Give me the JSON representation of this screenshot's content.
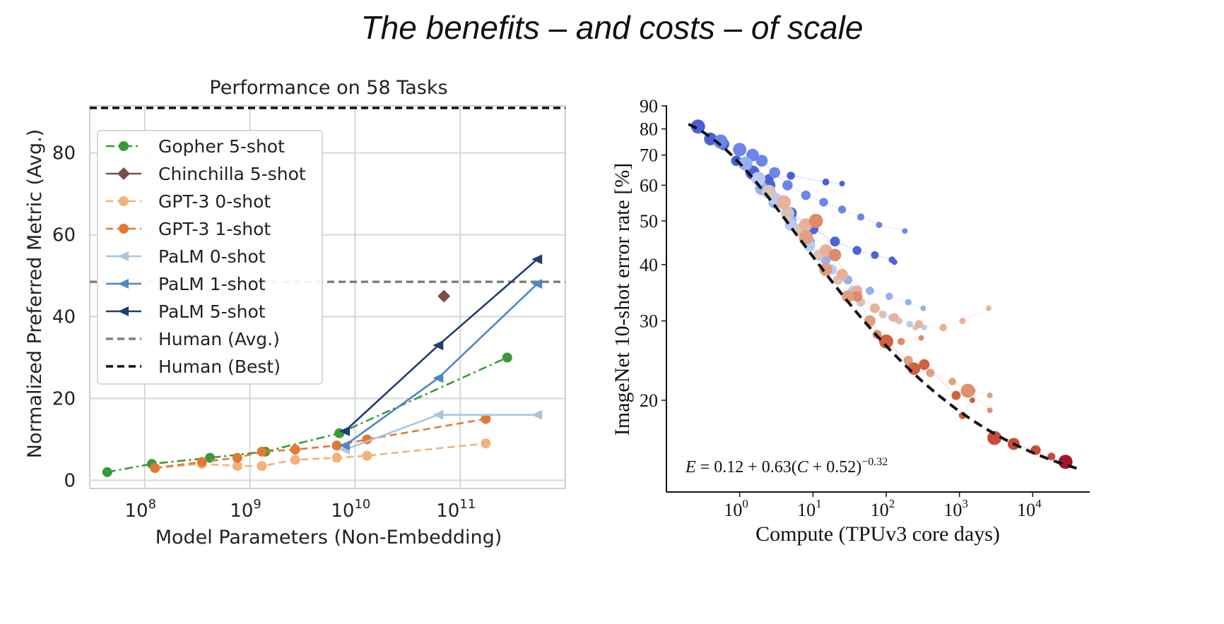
{
  "slide": {
    "title": "The benefits – and costs – of scale"
  },
  "chart_data": [
    {
      "type": "line",
      "title": "Performance on 58 Tasks",
      "xlabel": "Model Parameters (Non-Embedding)",
      "ylabel": "Normalized Preferred Metric (Avg.)",
      "x_scale": "log",
      "xlim": [
        30000000.0,
        1000000000000.0
      ],
      "ylim": [
        -2,
        91.5
      ],
      "x_ticks": [
        {
          "value": 100000000.0,
          "base": "10",
          "exp": "8"
        },
        {
          "value": 1000000000.0,
          "base": "10",
          "exp": "9"
        },
        {
          "value": 10000000000.0,
          "base": "10",
          "exp": "10"
        },
        {
          "value": 100000000000.0,
          "base": "10",
          "exp": "11"
        }
      ],
      "y_ticks": [
        0,
        20,
        40,
        60,
        80
      ],
      "grid": true,
      "legend_position": "upper-left",
      "series": [
        {
          "name": "Gopher 5-shot",
          "color": "#3a9a3a",
          "style": "dashdot",
          "marker": "circle",
          "x": [
            44000000.0,
            117000000.0,
            417000000.0,
            1400000000.0,
            7100000000.0,
            280000000000.0
          ],
          "y": [
            2,
            4,
            5.5,
            7,
            11.5,
            30
          ]
        },
        {
          "name": "Chinchilla 5-shot",
          "color": "#7b4f45",
          "style": "solid",
          "marker": "diamond",
          "x": [
            70000000000.0
          ],
          "y": [
            45
          ]
        },
        {
          "name": "GPT-3 0-shot",
          "color": "#f2b27a",
          "style": "dashed",
          "marker": "circle",
          "x": [
            125000000.0,
            350000000.0,
            760000000.0,
            1300000000.0,
            2700000000.0,
            6700000000.0,
            13000000000.0,
            175000000000.0
          ],
          "y": [
            3,
            4,
            3.5,
            3.5,
            5,
            5.5,
            6,
            9
          ]
        },
        {
          "name": "GPT-3 1-shot",
          "color": "#e07a35",
          "style": "dashed",
          "marker": "circle",
          "x": [
            125000000.0,
            350000000.0,
            760000000.0,
            1300000000.0,
            2700000000.0,
            6700000000.0,
            13000000000.0,
            175000000000.0
          ],
          "y": [
            3,
            4.5,
            5.5,
            7,
            7.5,
            8.5,
            10,
            15
          ]
        },
        {
          "name": "PaLM 0-shot",
          "color": "#a9c6e0",
          "style": "solid",
          "marker": "triangle-left",
          "x": [
            8000000000.0,
            62000000000.0,
            540000000000.0
          ],
          "y": [
            7.5,
            16,
            16
          ]
        },
        {
          "name": "PaLM 1-shot",
          "color": "#4f87c2",
          "style": "solid",
          "marker": "triangle-left",
          "x": [
            8000000000.0,
            62000000000.0,
            540000000000.0
          ],
          "y": [
            8.5,
            25,
            48
          ]
        },
        {
          "name": "PaLM 5-shot",
          "color": "#1f3f6e",
          "style": "solid",
          "marker": "triangle-left",
          "x": [
            8000000000.0,
            62000000000.0,
            540000000000.0
          ],
          "y": [
            12,
            33,
            54
          ]
        },
        {
          "name": "Human (Avg.)",
          "color": "#808080",
          "style": "dashed",
          "marker": "none",
          "hline": 48.5
        },
        {
          "name": "Human (Best)",
          "color": "#111111",
          "style": "dashed",
          "marker": "none",
          "hline": 91
        }
      ]
    },
    {
      "type": "scatter",
      "xlabel": "Compute (TPUv3 core days)",
      "ylabel": "ImageNet 10-shot error rate [%]",
      "x_scale": "log",
      "y_scale": "log",
      "xlim": [
        0.1,
        60000
      ],
      "ylim": [
        13.5,
        90
      ],
      "x_ticks": [
        {
          "value": 1,
          "base": "10",
          "exp": "0"
        },
        {
          "value": 10,
          "base": "10",
          "exp": "1"
        },
        {
          "value": 100,
          "base": "10",
          "exp": "2"
        },
        {
          "value": 1000,
          "base": "10",
          "exp": "3"
        },
        {
          "value": 10000,
          "base": "10",
          "exp": "4"
        }
      ],
      "y_ticks": [
        20,
        30,
        40,
        50,
        60,
        70,
        80,
        90
      ],
      "grid": false,
      "fit": {
        "a": 0.12,
        "b": 0.63,
        "c": 0.52,
        "k": -0.32,
        "x_range": [
          0.2,
          40000
        ],
        "color": "#111111",
        "style": "dashed"
      },
      "annotation": {
        "lhs": "E",
        "rhs": " = 0.12 + 0.63(",
        "var": "C",
        "tail": " + 0.52)",
        "exp": "−0.32"
      },
      "groups": [
        {
          "color": "#4b5fd6",
          "points": [
            [
              0.27,
              81
            ],
            [
              0.4,
              76
            ],
            [
              0.6,
              74
            ],
            [
              0.9,
              68
            ],
            [
              2.5,
              62
            ],
            [
              5,
              63
            ],
            [
              15,
              61
            ],
            [
              25,
              60.5
            ]
          ]
        },
        {
          "color": "#6b86ea",
          "points": [
            [
              0.55,
              75
            ],
            [
              1.0,
              72
            ],
            [
              1.5,
              70
            ],
            [
              2,
              68
            ],
            [
              3,
              64
            ],
            [
              4.5,
              60
            ],
            [
              8,
              57
            ],
            [
              14,
              55
            ],
            [
              25,
              53
            ],
            [
              45,
              51
            ],
            [
              80,
              49
            ],
            [
              180,
              47.5
            ]
          ]
        },
        {
          "color": "#4d63d8",
          "points": [
            [
              1.5,
              64
            ],
            [
              2.5,
              60
            ],
            [
              5,
              52
            ],
            [
              10,
              48
            ],
            [
              20,
              45
            ],
            [
              40,
              43
            ],
            [
              70,
              42
            ],
            [
              120,
              41
            ],
            [
              130,
              40.5
            ]
          ]
        },
        {
          "color": "#93b0f2",
          "points": [
            [
              1.2,
              67
            ],
            [
              2.0,
              59
            ],
            [
              3,
              55
            ],
            [
              5,
              50
            ],
            [
              9,
              45
            ],
            [
              15,
              41
            ],
            [
              30,
              37
            ],
            [
              60,
              35
            ],
            [
              110,
              34
            ],
            [
              200,
              33
            ],
            [
              320,
              32
            ]
          ]
        },
        {
          "color": "#b9cbf3",
          "points": [
            [
              1.8,
              62
            ],
            [
              3,
              56
            ],
            [
              5,
              49
            ],
            [
              9,
              44
            ],
            [
              18,
              39
            ],
            [
              35,
              35
            ],
            [
              70,
              32
            ],
            [
              120,
              30.5
            ],
            [
              210,
              29.5
            ],
            [
              330,
              29
            ]
          ]
        },
        {
          "color": "#d8c3b8",
          "points": [
            [
              2.5,
              58
            ],
            [
              4.5,
              52
            ],
            [
              7,
              48
            ],
            [
              12,
              42
            ],
            [
              22,
              37
            ],
            [
              45,
              33
            ],
            [
              90,
              31
            ],
            [
              150,
              30
            ],
            [
              250,
              29
            ]
          ]
        },
        {
          "color": "#e8b29a",
          "points": [
            [
              4,
              55
            ],
            [
              8,
              49
            ],
            [
              15,
              43
            ],
            [
              25,
              38
            ],
            [
              40,
              35
            ],
            [
              70,
              32
            ],
            [
              130,
              30.5
            ],
            [
              280,
              29.5
            ],
            [
              600,
              29
            ],
            [
              1100,
              30
            ],
            [
              2500,
              32
            ]
          ]
        },
        {
          "color": "#df8a6b",
          "points": [
            [
              11,
              50
            ],
            [
              20,
              42
            ],
            [
              40,
              34
            ],
            [
              75,
              28
            ],
            [
              160,
              27
            ],
            [
              300,
              27.5
            ]
          ]
        },
        {
          "color": "#e0a080",
          "points": [
            [
              8,
              46
            ],
            [
              15,
              39
            ],
            [
              30,
              34
            ],
            [
              60,
              30
            ],
            [
              100,
              27
            ],
            [
              200,
              24.5
            ],
            [
              400,
              23
            ],
            [
              800,
              22
            ],
            [
              1500,
              21
            ],
            [
              2600,
              20.5
            ]
          ]
        },
        {
          "color": "#cf6040",
          "points": [
            [
              100,
              27
            ],
            [
              240,
              23.5
            ],
            [
              330,
              24
            ],
            [
              900,
              20.5
            ],
            [
              1100,
              18.5
            ],
            [
              1500,
              20
            ]
          ]
        },
        {
          "color": "#e09070",
          "points": [
            [
              1300,
              21
            ],
            [
              2600,
              19
            ]
          ]
        },
        {
          "color": "#c94c3a",
          "points": [
            [
              3000,
              16.5
            ],
            [
              5500,
              16
            ],
            [
              11000,
              15.5
            ],
            [
              18000,
              15
            ],
            [
              28000,
              14.5
            ]
          ]
        },
        {
          "color": "#a3162e",
          "points": [
            [
              28000,
              14.6
            ]
          ]
        }
      ]
    }
  ]
}
